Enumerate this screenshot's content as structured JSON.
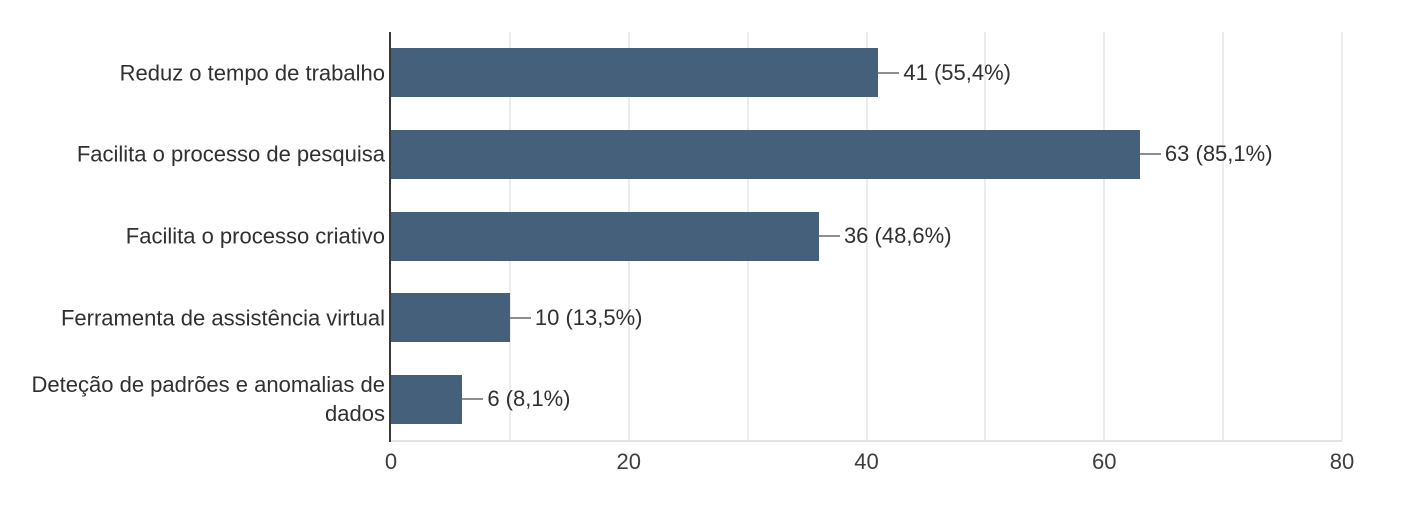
{
  "chart_data": {
    "type": "bar",
    "orientation": "horizontal",
    "categories": [
      "Reduz o tempo de trabalho",
      "Facilita o processo de pesquisa",
      "Facilita o processo criativo",
      "Ferramenta de assistência virtual",
      "Deteção de padrões e anomalias de dados"
    ],
    "values": [
      41,
      63,
      36,
      10,
      6
    ],
    "percentages": [
      55.4,
      85.1,
      48.6,
      13.5,
      8.1
    ],
    "value_labels": [
      "41 (55,4%)",
      "63 (85,1%)",
      "36 (48,6%)",
      "10 (13,5%)",
      "6 (8,1%)"
    ],
    "xlim": [
      0,
      80
    ],
    "x_ticks": [
      0,
      20,
      40,
      60,
      80
    ],
    "gridline_interval": 10,
    "grid": true,
    "legend": false,
    "colors": {
      "bar": "#44607a",
      "axis_line": "#383838",
      "gridline": "#ececec",
      "baseline": "#e3e3e3",
      "leader_line": "#8f8f8f",
      "category_text": "#303030",
      "value_text": "#303030",
      "tick_text": "#3d3d3d",
      "background": "#ffffff"
    }
  }
}
